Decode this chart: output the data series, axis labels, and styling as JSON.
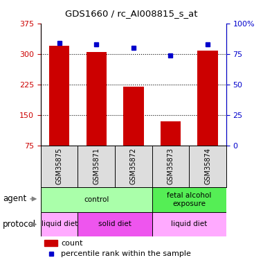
{
  "title": "GDS1660 / rc_AI008815_s_at",
  "samples": [
    "GSM35875",
    "GSM35871",
    "GSM35872",
    "GSM35873",
    "GSM35874"
  ],
  "counts": [
    320,
    304,
    220,
    135,
    308
  ],
  "percentiles": [
    84,
    83,
    80,
    74,
    83
  ],
  "ylim_left": [
    75,
    375
  ],
  "ylim_right": [
    0,
    100
  ],
  "yticks_left": [
    75,
    150,
    225,
    300,
    375
  ],
  "yticks_right": [
    0,
    25,
    50,
    75,
    100
  ],
  "ytick_labels_right": [
    "0",
    "25",
    "50",
    "75",
    "100%"
  ],
  "bar_color": "#cc0000",
  "dot_color": "#0000cc",
  "grid_lines": [
    150,
    225,
    300
  ],
  "agent_groups": [
    {
      "label": "control",
      "span": [
        0,
        3
      ],
      "color": "#aaffaa"
    },
    {
      "label": "fetal alcohol\nexposure",
      "span": [
        3,
        5
      ],
      "color": "#55ee55"
    }
  ],
  "protocol_groups": [
    {
      "label": "liquid diet",
      "span": [
        0,
        1
      ],
      "color": "#ffaaff"
    },
    {
      "label": "solid diet",
      "span": [
        1,
        3
      ],
      "color": "#ee55ee"
    },
    {
      "label": "liquid diet",
      "span": [
        3,
        5
      ],
      "color": "#ffaaff"
    }
  ],
  "left_axis_color": "#cc0000",
  "right_axis_color": "#0000cc"
}
